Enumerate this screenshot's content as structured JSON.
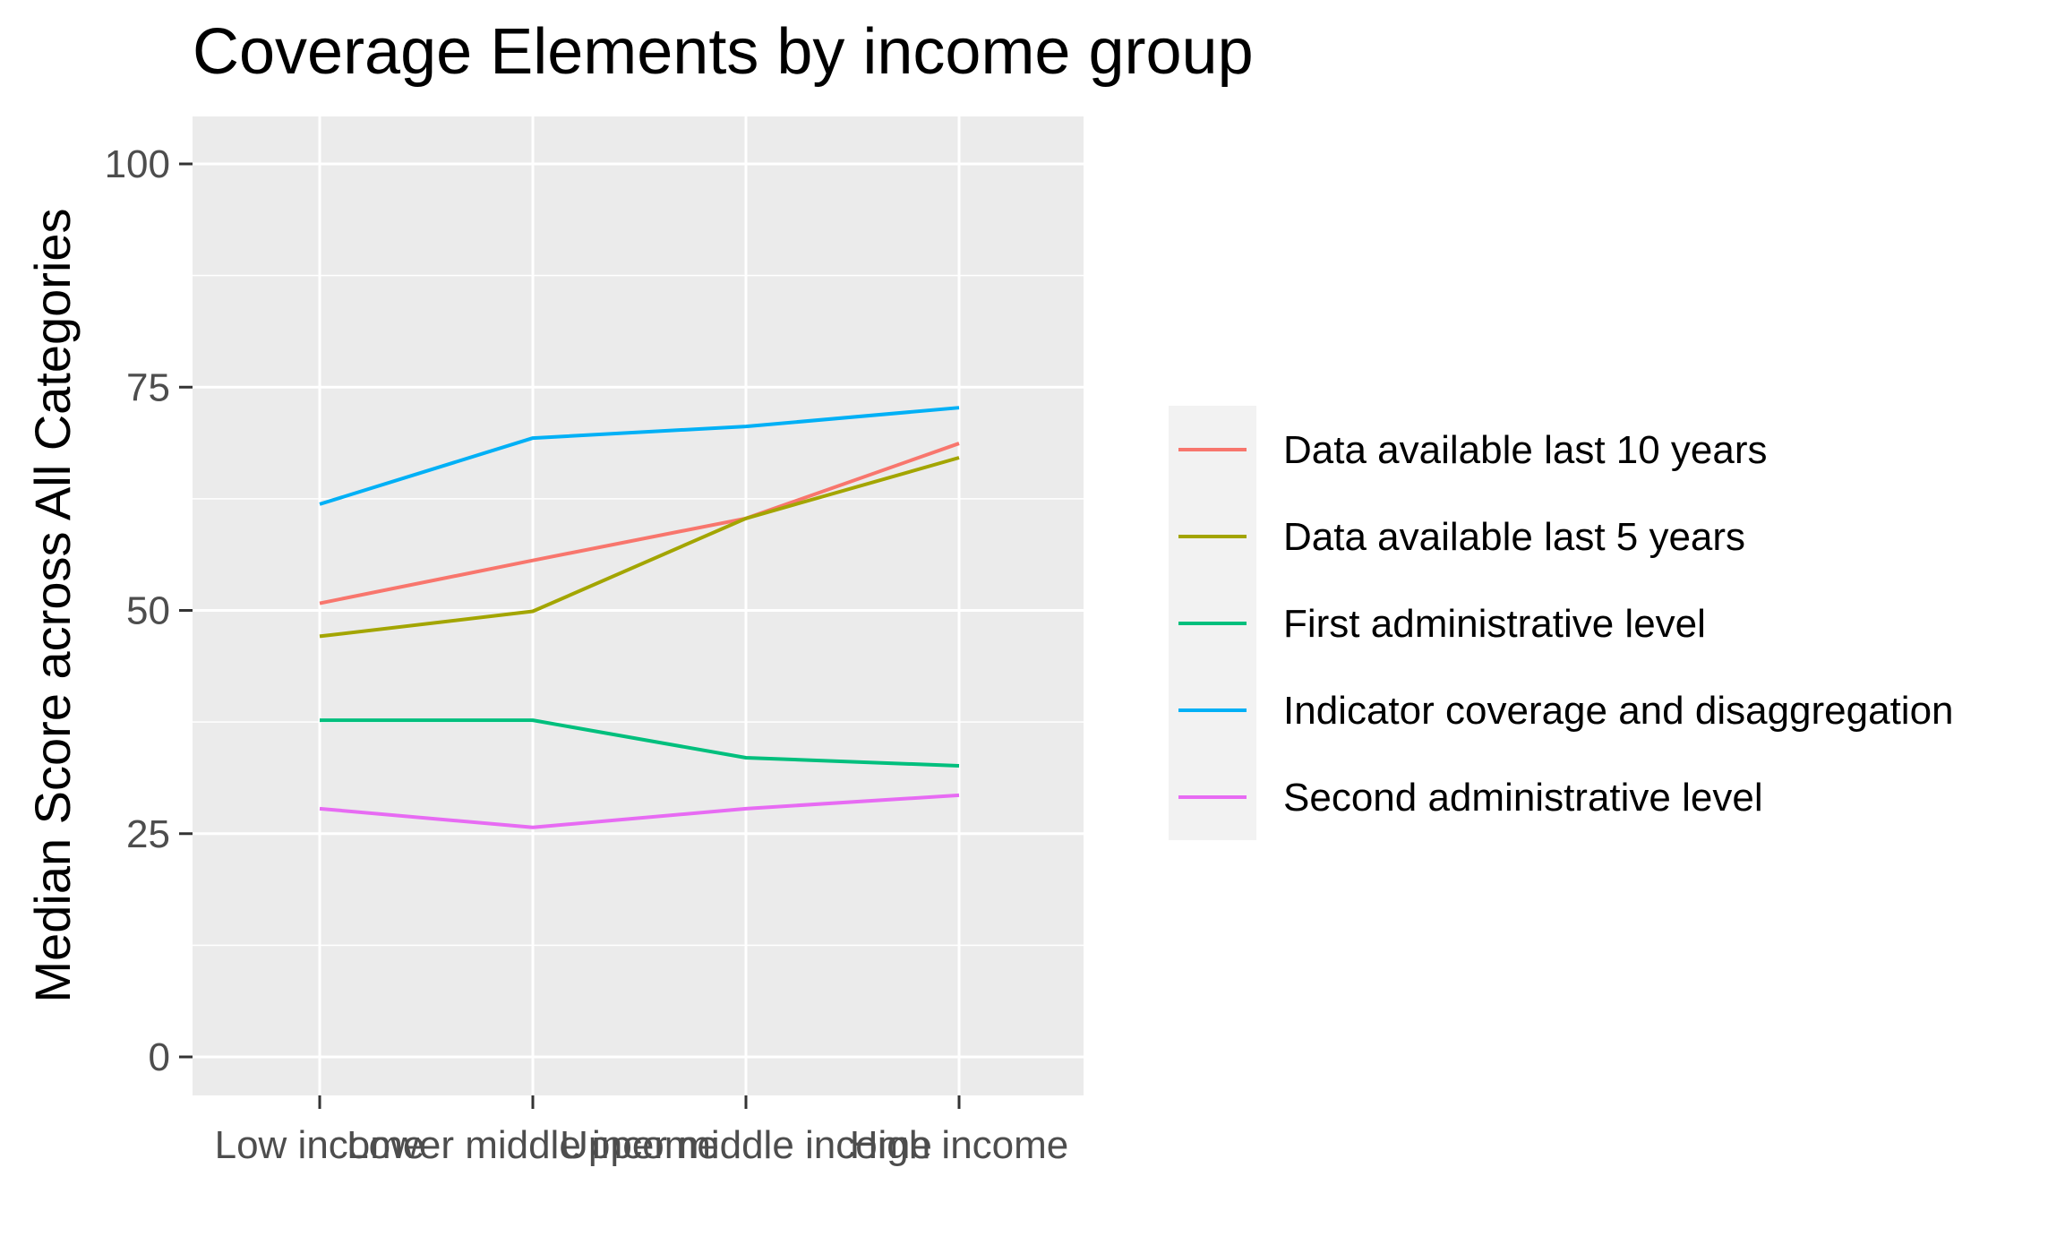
{
  "chart_data": {
    "type": "line",
    "title": "Coverage Elements by income group",
    "xlabel": "",
    "ylabel": "Median Score across All Categories",
    "categories": [
      "Low income",
      "Lower middle income",
      "Upper middle income",
      "High income"
    ],
    "ylim": [
      -5,
      105
    ],
    "yticks": [
      0,
      25,
      50,
      75,
      100
    ],
    "grid": true,
    "legend_position": "right",
    "series": [
      {
        "name": "Data available last 10 years",
        "color": "#F8766D",
        "values": [
          50.8,
          55.6,
          60.3,
          68.7
        ]
      },
      {
        "name": "Data available last 5 years",
        "color": "#A3A500",
        "values": [
          47.1,
          49.9,
          60.3,
          67.1
        ]
      },
      {
        "name": "First administrative level",
        "color": "#00BF7D",
        "values": [
          37.7,
          37.7,
          33.5,
          32.6
        ]
      },
      {
        "name": "Indicator coverage and disaggregation",
        "color": "#00B0F6",
        "values": [
          61.9,
          69.3,
          70.6,
          72.7
        ]
      },
      {
        "name": "Second administrative level",
        "color": "#E76BF3",
        "values": [
          27.8,
          25.7,
          27.8,
          29.3
        ]
      }
    ]
  }
}
